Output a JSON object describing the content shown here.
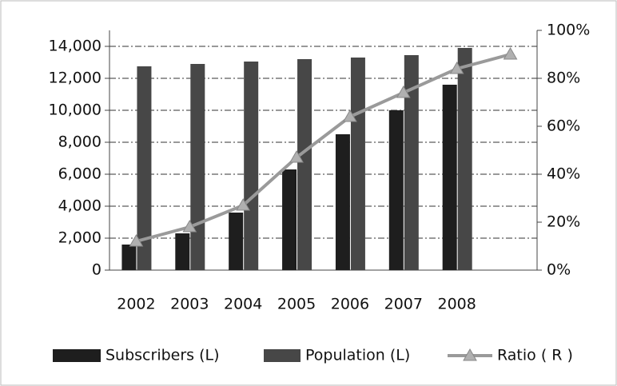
{
  "chart_data": {
    "type": "bar",
    "categories": [
      "2002",
      "2003",
      "2004",
      "2005",
      "2006",
      "2007",
      "2008",
      null
    ],
    "series": [
      {
        "name": "Subscribers (L)",
        "color": "#1e1e1e",
        "type": "bar",
        "values": [
          1600,
          2300,
          3600,
          6300,
          8500,
          10000,
          11600,
          null
        ]
      },
      {
        "name": "Population (L)",
        "color": "#474747",
        "type": "bar",
        "values": [
          12750,
          12900,
          13050,
          13200,
          13300,
          13450,
          13900,
          null
        ]
      },
      {
        "name": "Ratio ( R )",
        "color": "#9a9a9a",
        "type": "line",
        "axis": "y2",
        "values": [
          12,
          18,
          27,
          47,
          64,
          74,
          84,
          90
        ]
      }
    ],
    "ylim": [
      0,
      15000
    ],
    "yticks": [
      0,
      {
        "value": 2000,
        "label": "2,000"
      },
      {
        "value": 4000,
        "label": "4,000"
      },
      {
        "value": 6000,
        "label": "6,000"
      },
      {
        "value": 8000,
        "label": "8,000"
      },
      {
        "value": 10000,
        "label": "10,000"
      },
      {
        "value": 12000,
        "label": "12,000"
      },
      {
        "value": 14000,
        "label": "14,000"
      }
    ],
    "y2lim": [
      0,
      100
    ],
    "y2ticks": [
      {
        "value": 0,
        "label": "0%"
      },
      {
        "value": 20,
        "label": "20%"
      },
      {
        "value": 40,
        "label": "40%"
      },
      {
        "value": 60,
        "label": "60%"
      },
      {
        "value": 80,
        "label": "80%"
      },
      {
        "value": 100,
        "label": "100%"
      }
    ],
    "grid": true,
    "legend": "bottom"
  }
}
